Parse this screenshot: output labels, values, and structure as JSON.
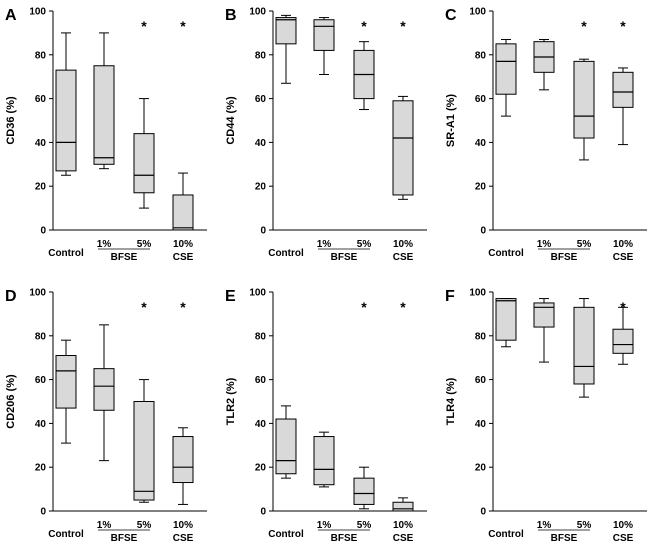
{
  "chart_data": [
    {
      "panel": "A",
      "type": "boxplot",
      "ylabel": "CD36 (%)",
      "ylim": [
        0,
        100
      ],
      "yticks": [
        "0",
        "20",
        "40",
        "60",
        "80",
        "100"
      ],
      "categories": [
        "Control",
        "1%",
        "5%",
        "10%"
      ],
      "group_labels": [
        "BFSE",
        "CSE"
      ],
      "boxes": [
        {
          "min": 25,
          "q1": 27,
          "median": 40,
          "q3": 73,
          "max": 90,
          "star": false
        },
        {
          "min": 28,
          "q1": 30,
          "median": 33,
          "q3": 75,
          "max": 90,
          "star": false
        },
        {
          "min": 10,
          "q1": 17,
          "median": 25,
          "q3": 44,
          "max": 60,
          "star": true
        },
        {
          "min": 0,
          "q1": 0,
          "median": 1,
          "q3": 16,
          "max": 26,
          "star": true
        }
      ],
      "annotation": "*"
    },
    {
      "panel": "B",
      "type": "boxplot",
      "ylabel": "CD44 (%)",
      "ylim": [
        0,
        100
      ],
      "yticks": [
        "0",
        "20",
        "40",
        "60",
        "80",
        "100"
      ],
      "categories": [
        "Control",
        "1%",
        "5%",
        "10%"
      ],
      "group_labels": [
        "BFSE",
        "CSE"
      ],
      "boxes": [
        {
          "min": 67,
          "q1": 85,
          "median": 96,
          "q3": 97,
          "max": 98,
          "star": false
        },
        {
          "min": 71,
          "q1": 82,
          "median": 93,
          "q3": 96,
          "max": 97,
          "star": false
        },
        {
          "min": 55,
          "q1": 60,
          "median": 71,
          "q3": 82,
          "max": 86,
          "star": true
        },
        {
          "min": 14,
          "q1": 16,
          "median": 42,
          "q3": 59,
          "max": 61,
          "star": true
        }
      ],
      "annotation": "*"
    },
    {
      "panel": "C",
      "type": "boxplot",
      "ylabel": "SR-A1 (%)",
      "ylim": [
        0,
        100
      ],
      "yticks": [
        "0",
        "20",
        "40",
        "60",
        "80",
        "100"
      ],
      "categories": [
        "Control",
        "1%",
        "5%",
        "10%"
      ],
      "group_labels": [
        "BFSE",
        "CSE"
      ],
      "boxes": [
        {
          "min": 52,
          "q1": 62,
          "median": 77,
          "q3": 85,
          "max": 87,
          "star": false
        },
        {
          "min": 64,
          "q1": 72,
          "median": 79,
          "q3": 86,
          "max": 87,
          "star": false
        },
        {
          "min": 32,
          "q1": 42,
          "median": 52,
          "q3": 77,
          "max": 78,
          "star": true
        },
        {
          "min": 39,
          "q1": 56,
          "median": 63,
          "q3": 72,
          "max": 74,
          "star": true
        }
      ],
      "annotation": "*"
    },
    {
      "panel": "D",
      "type": "boxplot",
      "ylabel": "CD206 (%)",
      "ylim": [
        0,
        100
      ],
      "yticks": [
        "0",
        "20",
        "40",
        "60",
        "80",
        "100"
      ],
      "categories": [
        "Control",
        "1%",
        "5%",
        "10%"
      ],
      "group_labels": [
        "BFSE",
        "CSE"
      ],
      "boxes": [
        {
          "min": 31,
          "q1": 47,
          "median": 64,
          "q3": 71,
          "max": 78,
          "star": false
        },
        {
          "min": 23,
          "q1": 46,
          "median": 57,
          "q3": 65,
          "max": 85,
          "star": false
        },
        {
          "min": 4,
          "q1": 5,
          "median": 9,
          "q3": 50,
          "max": 60,
          "star": true
        },
        {
          "min": 3,
          "q1": 13,
          "median": 20,
          "q3": 34,
          "max": 38,
          "star": true
        }
      ],
      "annotation": "*"
    },
    {
      "panel": "E",
      "type": "boxplot",
      "ylabel": "TLR2 (%)",
      "ylim": [
        0,
        100
      ],
      "yticks": [
        "0",
        "20",
        "40",
        "60",
        "80",
        "100"
      ],
      "categories": [
        "Control",
        "1%",
        "5%",
        "10%"
      ],
      "group_labels": [
        "BFSE",
        "CSE"
      ],
      "boxes": [
        {
          "min": 15,
          "q1": 17,
          "median": 23,
          "q3": 42,
          "max": 48,
          "star": false
        },
        {
          "min": 11,
          "q1": 12,
          "median": 19,
          "q3": 34,
          "max": 36,
          "star": false
        },
        {
          "min": 1,
          "q1": 3,
          "median": 8,
          "q3": 15,
          "max": 20,
          "star": true
        },
        {
          "min": 0,
          "q1": 0,
          "median": 1,
          "q3": 4,
          "max": 6,
          "star": true
        }
      ],
      "annotation": "*"
    },
    {
      "panel": "F",
      "type": "boxplot",
      "ylabel": "TLR4 (%)",
      "ylim": [
        0,
        100
      ],
      "yticks": [
        "0",
        "20",
        "40",
        "60",
        "80",
        "100"
      ],
      "categories": [
        "Control",
        "1%",
        "5%",
        "10%"
      ],
      "group_labels": [
        "BFSE",
        "CSE"
      ],
      "boxes": [
        {
          "min": 75,
          "q1": 78,
          "median": 96,
          "q3": 97,
          "max": 97,
          "star": false
        },
        {
          "min": 68,
          "q1": 84,
          "median": 93,
          "q3": 95,
          "max": 97,
          "star": false
        },
        {
          "min": 52,
          "q1": 58,
          "median": 66,
          "q3": 93,
          "max": 97,
          "star": false
        },
        {
          "min": 67,
          "q1": 72,
          "median": 76,
          "q3": 83,
          "max": 93,
          "star": true
        }
      ],
      "annotation": "*"
    }
  ],
  "colors": {
    "box_fill": "#d9d9d9",
    "line": "#000000",
    "background": "#ffffff"
  }
}
